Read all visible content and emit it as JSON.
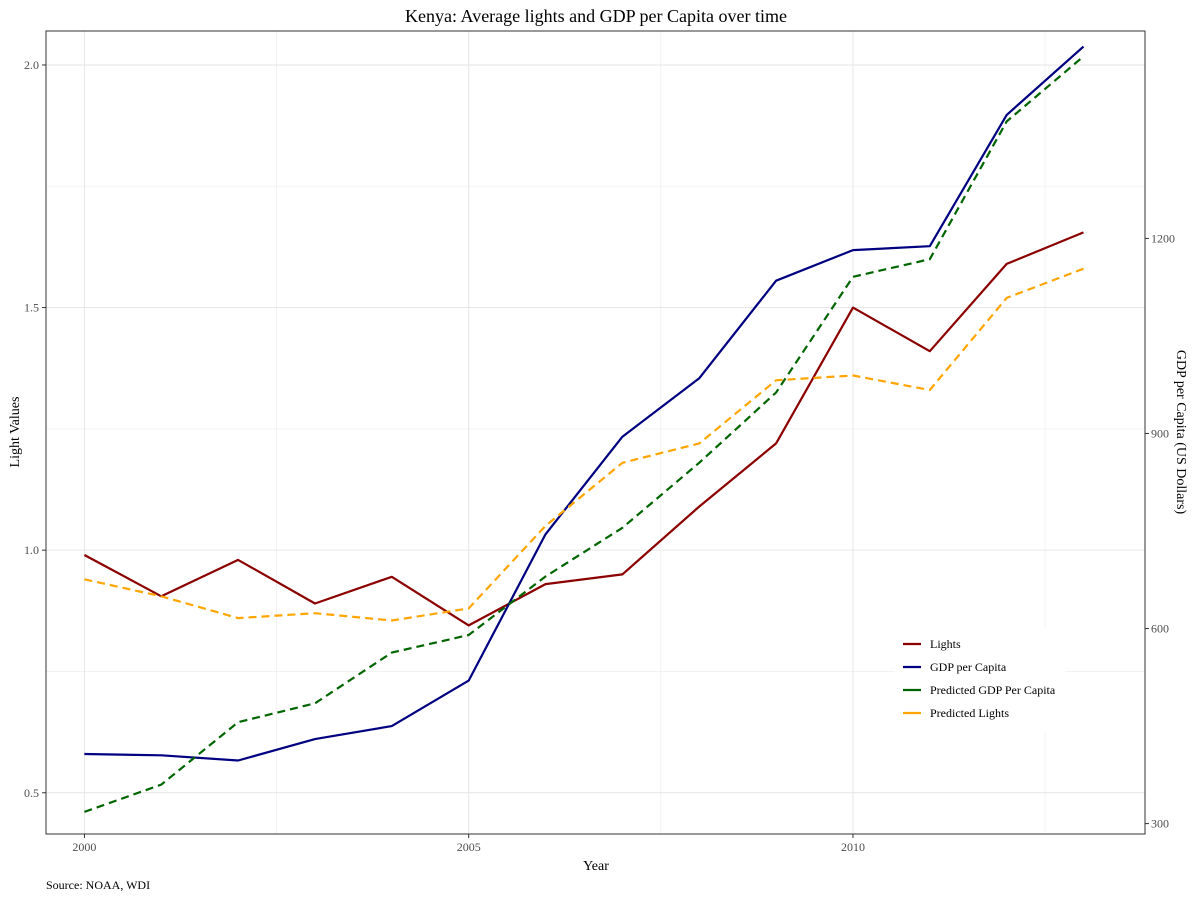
{
  "chart_data": {
    "type": "line",
    "title": "Kenya: Average lights and GDP per Capita over time",
    "xlabel": "Year",
    "ylabel": "Light Values",
    "y2label": "GDP per Capita (US Dollars)",
    "caption": "Source: NOAA, WDI",
    "xlim": [
      1999.5,
      2013.8
    ],
    "ylim": [
      0.415,
      2.07
    ],
    "y2lim": [
      284,
      1519
    ],
    "x_ticks": [
      2000,
      2005,
      2010
    ],
    "x_tick_labels": [
      "2000",
      "2005",
      "2010"
    ],
    "x_minor": [
      2002.5,
      2007.5,
      2012.5
    ],
    "y_ticks": [
      0.5,
      1.0,
      1.5,
      2.0
    ],
    "y_tick_labels": [
      "0.5",
      "1.0",
      "1.5",
      "2.0"
    ],
    "y_minor": [
      0.75,
      1.25,
      1.75
    ],
    "y2_ticks": [
      300,
      600,
      900,
      1200
    ],
    "y2_tick_labels": [
      "300",
      "600",
      "900",
      "1200"
    ],
    "grid": true,
    "legend_position": "bottom-right",
    "x": [
      2000,
      2001,
      2002,
      2003,
      2004,
      2005,
      2006,
      2007,
      2008,
      2009,
      2010,
      2011,
      2012,
      2013
    ],
    "series": [
      {
        "name": "Lights",
        "axis": "left",
        "color": "#8b0000",
        "dash": "solid",
        "values": [
          0.99,
          0.905,
          0.98,
          0.89,
          0.945,
          0.845,
          0.93,
          0.95,
          1.09,
          1.22,
          1.5,
          1.41,
          1.59,
          1.655
        ]
      },
      {
        "name": "GDP per Capita",
        "axis": "right",
        "color": "#000080",
        "dash": "solid",
        "values": [
          407,
          405,
          397,
          430,
          450,
          520,
          745,
          895,
          985,
          1135,
          1182,
          1188,
          1390,
          1495
        ]
      },
      {
        "name": "Predicted GDP Per Capita",
        "axis": "right",
        "color": "#006400",
        "dash": "dashed",
        "values": [
          318,
          360,
          456,
          485,
          563,
          590,
          680,
          755,
          855,
          963,
          1141,
          1168,
          1380,
          1480
        ]
      },
      {
        "name": "Predicted Lights",
        "axis": "left",
        "color": "#ffa500",
        "dash": "dashed",
        "values": [
          0.94,
          0.905,
          0.86,
          0.87,
          0.855,
          0.88,
          1.05,
          1.18,
          1.22,
          1.35,
          1.36,
          1.33,
          1.52,
          1.58
        ]
      }
    ]
  }
}
